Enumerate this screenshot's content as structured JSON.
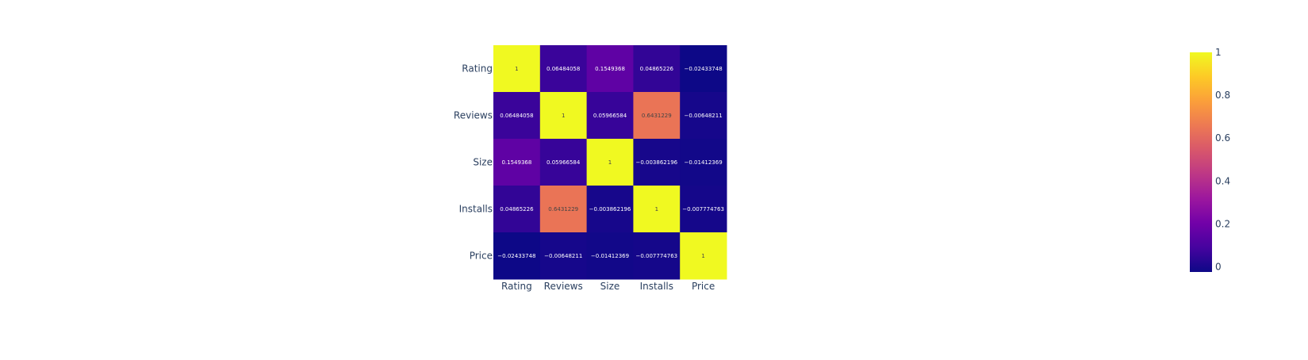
{
  "chart_data": {
    "type": "heatmap",
    "x_categories": [
      "Rating",
      "Reviews",
      "Size",
      "Installs",
      "Price"
    ],
    "y_categories": [
      "Rating",
      "Reviews",
      "Size",
      "Installs",
      "Price"
    ],
    "z": [
      [
        1,
        0.06484058,
        0.1549368,
        0.04865226,
        -0.02433748
      ],
      [
        0.06484058,
        1,
        0.05966584,
        0.6431229,
        -0.00648211
      ],
      [
        0.1549368,
        0.05966584,
        1,
        -0.003862196,
        -0.01412369
      ],
      [
        0.04865226,
        0.6431229,
        -0.003862196,
        1,
        -0.007774763
      ],
      [
        -0.02433748,
        -0.00648211,
        -0.01412369,
        -0.007774763,
        1
      ]
    ],
    "cell_text": [
      [
        "1",
        "0.06484058",
        "0.1549368",
        "0.04865226",
        "−0.02433748"
      ],
      [
        "0.06484058",
        "1",
        "0.05966584",
        "0.6431229",
        "−0.00648211"
      ],
      [
        "0.1549368",
        "0.05966584",
        "1",
        "−0.003862196",
        "−0.01412369"
      ],
      [
        "0.04865226",
        "0.6431229",
        "−0.003862196",
        "1",
        "−0.007774763"
      ],
      [
        "−0.02433748",
        "−0.00648211",
        "−0.01412369",
        "−0.007774763",
        "1"
      ]
    ],
    "zmin": -0.02433748,
    "zmax": 1,
    "colorscale": [
      "#0d0887",
      "#46039f",
      "#7201a8",
      "#9c179e",
      "#bd3786",
      "#d8576b",
      "#ed7953",
      "#fb9f3a",
      "#fdca26",
      "#f0f921"
    ],
    "colorbar_ticks": [
      "0",
      "0.2",
      "0.4",
      "0.6",
      "0.8",
      "1"
    ],
    "colorbar_tick_values": [
      0,
      0.2,
      0.4,
      0.6,
      0.8,
      1
    ],
    "text_color_dark": "#444444",
    "text_color_light": "#ffffff",
    "axis_label_color": "#2a3f5f",
    "title": "",
    "xlabel": "",
    "ylabel": ""
  }
}
